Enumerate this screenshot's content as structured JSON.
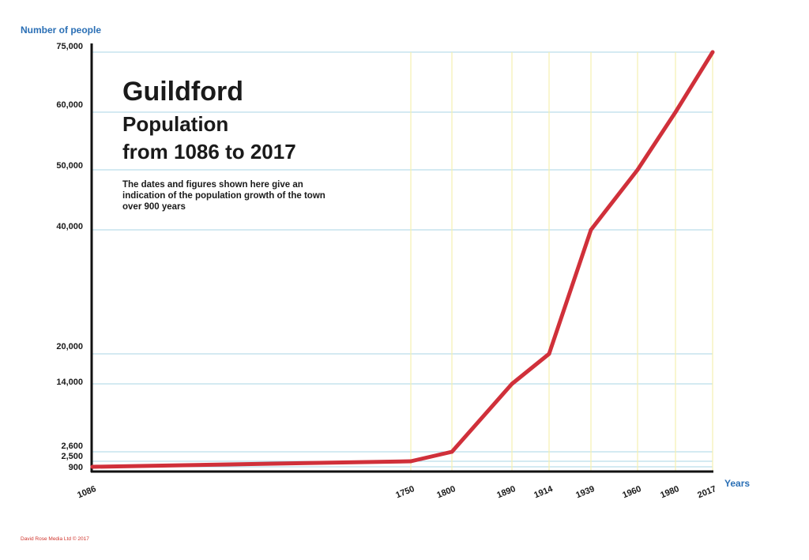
{
  "chart_data": {
    "type": "line",
    "title": "Guildford",
    "subtitle": [
      "Population",
      "from 1086 to 2017"
    ],
    "description": [
      "The dates and figures shown here give an",
      "indication of the population growth of the town",
      "over 900 years"
    ],
    "xlabel": "Years",
    "ylabel": "Number of people",
    "x": [
      "1086",
      "1750",
      "1800",
      "1890",
      "1914",
      "1939",
      "1960",
      "1980",
      "2017"
    ],
    "y_ticks": [
      "900",
      "2,500",
      "2,600",
      "14,000",
      "20,000",
      "40,000",
      "50,000",
      "60,000",
      "75,000"
    ],
    "series": [
      {
        "values": [
          900,
          2500,
          2600,
          14000,
          20000,
          40000,
          50000,
          60000,
          75000
        ]
      }
    ],
    "grid": true,
    "line_color": "#d0303a",
    "hgrid_color": "#a8d4e6",
    "vgrid_color": "#f5efb0",
    "axis_title_color": "#2a6fb5"
  },
  "credit": "David Rose Media Ltd © 2017"
}
